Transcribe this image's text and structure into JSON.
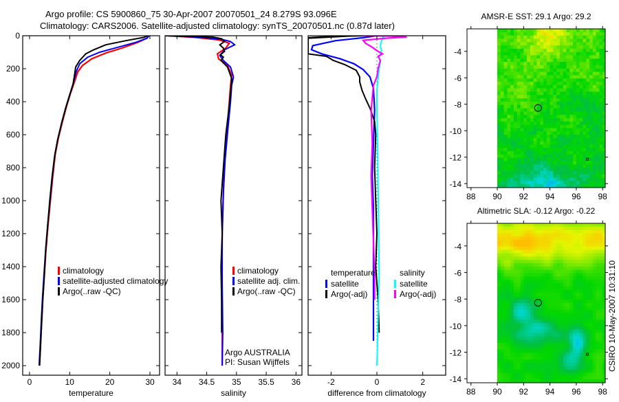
{
  "title": {
    "line1": "Argo profile: CS 5900860_75 30-Apr-2007 20070501_24 8.279S 93.096E",
    "line2": "Climatology: CARS2006. Satellite-adjusted climatology: synTS_20070501.nc (0.87d later)"
  },
  "side_label": "CSIRO 10-May-2007 10:31:10",
  "annotation": {
    "line1": "Argo AUSTRALIA",
    "line2": "PI: Susan Wijffels"
  },
  "colors": {
    "climatology": "#ff0000",
    "satellite": "#0000ff",
    "argo": "#000000",
    "sal_satellite": "#00ffff",
    "sal_argo": "#ff00ff"
  },
  "chart_data": [
    {
      "type": "line",
      "id": "temperature",
      "xlabel": "temperature",
      "xlim": [
        -1.7,
        32.4
      ],
      "ylim": [
        0,
        2058
      ],
      "y_reversed": true,
      "xticks": [
        "0",
        "10",
        "20",
        "30"
      ],
      "yticks": [
        "0",
        "200",
        "400",
        "600",
        "800",
        "1000",
        "1200",
        "1400",
        "1600",
        "1800",
        "2000"
      ],
      "legend": [
        "climatology",
        "satellite-adjusted climatology",
        "Argo(..raw -QC)"
      ],
      "series": [
        {
          "name": "climatology",
          "color": "#ff0000",
          "points": [
            [
              29.6,
              0
            ],
            [
              29.2,
              15
            ],
            [
              27,
              40
            ],
            [
              23,
              75
            ],
            [
              19,
              105
            ],
            [
              15.5,
              140
            ],
            [
              13.2,
              180
            ],
            [
              12,
              220
            ],
            [
              11.2,
              280
            ],
            [
              10.2,
              350
            ],
            [
              9.2,
              430
            ],
            [
              8.2,
              520
            ],
            [
              7.2,
              620
            ],
            [
              6.4,
              720
            ],
            [
              5.8,
              850
            ],
            [
              5.2,
              1000
            ],
            [
              4.6,
              1150
            ],
            [
              4.1,
              1300
            ],
            [
              3.7,
              1450
            ],
            [
              3.3,
              1600
            ],
            [
              3,
              1750
            ],
            [
              2.7,
              1900
            ],
            [
              2.5,
              2000
            ]
          ]
        },
        {
          "name": "satellite-adjusted climatology",
          "color": "#0000ff",
          "points": [
            [
              29.8,
              0
            ],
            [
              29.3,
              15
            ],
            [
              26.5,
              40
            ],
            [
              22,
              70
            ],
            [
              17.5,
              100
            ],
            [
              14.5,
              130
            ],
            [
              12.5,
              170
            ],
            [
              11.6,
              220
            ],
            [
              11,
              280
            ],
            [
              10.1,
              350
            ],
            [
              9.1,
              430
            ],
            [
              8.1,
              520
            ],
            [
              7.1,
              620
            ],
            [
              6.3,
              720
            ],
            [
              5.7,
              850
            ],
            [
              5.1,
              1000
            ],
            [
              4.5,
              1150
            ],
            [
              4,
              1300
            ],
            [
              3.6,
              1450
            ],
            [
              3.2,
              1600
            ],
            [
              2.9,
              1750
            ],
            [
              2.6,
              1900
            ],
            [
              2.4,
              2000
            ]
          ]
        },
        {
          "name": "Argo(..raw -QC)",
          "color": "#000000",
          "points": [
            [
              29.4,
              0
            ],
            [
              28.5,
              10
            ],
            [
              24,
              30
            ],
            [
              19,
              55
            ],
            [
              16,
              85
            ],
            [
              14,
              110
            ],
            [
              12.5,
              150
            ],
            [
              11.5,
              190
            ],
            [
              11.2,
              240
            ],
            [
              10.8,
              300
            ],
            [
              10,
              360
            ],
            [
              9,
              440
            ],
            [
              8,
              530
            ],
            [
              7,
              630
            ],
            [
              6.2,
              740
            ],
            [
              5.6,
              860
            ],
            [
              5,
              1010
            ],
            [
              4.5,
              1160
            ],
            [
              4,
              1310
            ],
            [
              3.7,
              1450
            ],
            [
              3.3,
              1600
            ],
            [
              3,
              1750
            ],
            [
              2.7,
              1900
            ],
            [
              2.5,
              2000
            ]
          ]
        }
      ]
    },
    {
      "type": "line",
      "id": "salinity",
      "xlabel": "salinity",
      "xlim": [
        33.8,
        36.1
      ],
      "ylim": [
        0,
        2058
      ],
      "y_reversed": true,
      "xticks": [
        "34",
        "34.5",
        "35",
        "35.5",
        "36"
      ],
      "legend": [
        "climatology",
        "satellite adj. clim.",
        "Argo(..raw -QC)"
      ],
      "series": [
        {
          "name": "climatology",
          "color": "#ff0000",
          "points": [
            [
              33.85,
              0
            ],
            [
              34.3,
              10
            ],
            [
              34.7,
              25
            ],
            [
              34.88,
              45
            ],
            [
              34.82,
              75
            ],
            [
              34.68,
              110
            ],
            [
              34.7,
              140
            ],
            [
              34.85,
              180
            ],
            [
              34.92,
              240
            ],
            [
              34.9,
              300
            ],
            [
              34.88,
              400
            ],
            [
              34.85,
              550
            ],
            [
              34.8,
              750
            ],
            [
              34.78,
              950
            ],
            [
              34.76,
              1200
            ],
            [
              34.75,
              1500
            ],
            [
              34.76,
              1800
            ],
            [
              34.76,
              2000
            ]
          ]
        },
        {
          "name": "satellite adj. clim.",
          "color": "#0000ff",
          "points": [
            [
              33.85,
              0
            ],
            [
              34.4,
              10
            ],
            [
              34.75,
              22
            ],
            [
              34.9,
              35
            ],
            [
              34.97,
              55
            ],
            [
              34.8,
              85
            ],
            [
              34.72,
              120
            ],
            [
              34.78,
              150
            ],
            [
              34.9,
              190
            ],
            [
              34.95,
              250
            ],
            [
              34.92,
              300
            ],
            [
              34.9,
              400
            ],
            [
              34.86,
              550
            ],
            [
              34.81,
              750
            ],
            [
              34.78,
              950
            ],
            [
              34.76,
              1200
            ],
            [
              34.76,
              1500
            ],
            [
              34.77,
              1800
            ],
            [
              34.76,
              2000
            ]
          ]
        },
        {
          "name": "Argo(..raw -QC)",
          "color": "#000000",
          "points": [
            [
              33.8,
              0
            ],
            [
              34.6,
              8
            ],
            [
              34.75,
              18
            ],
            [
              34.8,
              35
            ],
            [
              34.72,
              55
            ],
            [
              34.78,
              75
            ],
            [
              34.8,
              95
            ],
            [
              34.73,
              115
            ],
            [
              34.78,
              130
            ],
            [
              34.74,
              150
            ],
            [
              34.85,
              190
            ],
            [
              34.92,
              260
            ],
            [
              34.9,
              350
            ],
            [
              34.87,
              450
            ],
            [
              34.82,
              600
            ],
            [
              34.78,
              800
            ],
            [
              34.74,
              1000
            ],
            [
              34.76,
              1200
            ],
            [
              34.74,
              1400
            ],
            [
              34.75,
              1600
            ],
            [
              34.75,
              1800
            ]
          ]
        }
      ]
    },
    {
      "type": "line",
      "id": "difference",
      "xlabel": "difference from climatology",
      "xlim": [
        -3.0,
        3.0
      ],
      "ylim": [
        0,
        2058
      ],
      "y_reversed": true,
      "xticks": [
        "-2",
        "0",
        "2"
      ],
      "legend_groups": [
        {
          "header": "temperature",
          "items": [
            "satellite",
            "Argo(-adj)"
          ]
        },
        {
          "header": "salinity",
          "items": [
            "satellite",
            "Argo(-adj)"
          ]
        }
      ],
      "series": [
        {
          "name": "temperature satellite",
          "color": "#0000ff",
          "points": [
            [
              0,
              0
            ],
            [
              -0.6,
              12
            ],
            [
              -1.8,
              30
            ],
            [
              -2.8,
              60
            ],
            [
              -2.85,
              85
            ],
            [
              -2.4,
              110
            ],
            [
              -1.6,
              140
            ],
            [
              -1.0,
              170
            ],
            [
              -0.6,
              205
            ],
            [
              -0.3,
              250
            ],
            [
              -0.15,
              320
            ],
            [
              -0.1,
              450
            ],
            [
              -0.15,
              650
            ],
            [
              -0.2,
              850
            ],
            [
              -0.15,
              1050
            ],
            [
              -0.15,
              1300
            ],
            [
              -0.15,
              1500
            ],
            [
              -0.15,
              1700
            ],
            [
              -0.15,
              1850
            ]
          ]
        },
        {
          "name": "temperature Argo(-adj)",
          "color": "#000000",
          "points": [
            [
              -3,
              12
            ],
            [
              -2.5,
              8
            ],
            [
              -1.4,
              3
            ],
            [
              -0.5,
              0
            ],
            [
              -1.2,
              2
            ],
            [
              -3,
              15
            ],
            [
              -3,
              110
            ],
            [
              -2.2,
              125
            ],
            [
              -1.9,
              150
            ],
            [
              -1.4,
              175
            ],
            [
              -0.9,
              210
            ],
            [
              -0.75,
              250
            ],
            [
              -0.75,
              280
            ],
            [
              -0.65,
              330
            ],
            [
              -0.5,
              380
            ],
            [
              -0.3,
              440
            ],
            [
              -0.1,
              520
            ],
            [
              -0.05,
              600
            ],
            [
              -0.1,
              800
            ],
            [
              -0.05,
              1000
            ],
            [
              0,
              1200
            ],
            [
              -0.05,
              1400
            ],
            [
              0.05,
              1600
            ],
            [
              0.1,
              1800
            ]
          ]
        },
        {
          "name": "salinity satellite",
          "color": "#00ffff",
          "points": [
            [
              0.2,
              0
            ],
            [
              0.3,
              12
            ],
            [
              0.2,
              30
            ],
            [
              0.15,
              60
            ],
            [
              0.2,
              90
            ],
            [
              0.1,
              130
            ],
            [
              0.15,
              160
            ],
            [
              0.1,
              200
            ],
            [
              0.05,
              260
            ],
            [
              0,
              330
            ],
            [
              0,
              450
            ],
            [
              0.03,
              650
            ],
            [
              0.05,
              900
            ],
            [
              0.08,
              1200
            ],
            [
              0.1,
              1450
            ],
            [
              0.05,
              1700
            ],
            [
              0.02,
              1900
            ],
            [
              0,
              2000
            ]
          ]
        },
        {
          "name": "salinity Argo(-adj)",
          "color": "#ff00ff",
          "points": [
            [
              -0.6,
              0
            ],
            [
              0.6,
              2
            ],
            [
              1.3,
              8
            ],
            [
              0.4,
              15
            ],
            [
              -0.6,
              28
            ],
            [
              -0.5,
              45
            ],
            [
              -0.2,
              70
            ],
            [
              0.05,
              95
            ],
            [
              0.25,
              110
            ],
            [
              0.05,
              125
            ],
            [
              0.15,
              150
            ],
            [
              0.05,
              200
            ],
            [
              0,
              250
            ],
            [
              -0.15,
              300
            ],
            [
              -0.25,
              450
            ],
            [
              -0.2,
              650
            ],
            [
              -0.25,
              850
            ],
            [
              -0.2,
              1050
            ],
            [
              -0.15,
              1250
            ],
            [
              -0.1,
              1450
            ],
            [
              -0.1,
              1600
            ]
          ]
        }
      ]
    },
    {
      "type": "heatmap",
      "id": "sst-map",
      "title": "AMSR-E SST: 29.1 Argo: 29.2",
      "xlim": [
        87.7,
        98.2
      ],
      "ylim": [
        -14.3,
        -2.3
      ],
      "data_lon_range": [
        90,
        98.2
      ],
      "xticks": [
        "88",
        "90",
        "92",
        "94",
        "96",
        "98"
      ],
      "yticks": [
        "-4",
        "-6",
        "-8",
        "-10",
        "-12",
        "-14"
      ],
      "profile_marker": {
        "lon": 93.096,
        "lat": -8.279
      },
      "secondary_marker": {
        "lon": 96.85,
        "lat": -12.15
      }
    },
    {
      "type": "heatmap",
      "id": "sla-map",
      "title": "Altimetric SLA: -0.12 Argo: -0.22",
      "xlim": [
        87.7,
        98.2
      ],
      "ylim": [
        -14.3,
        -2.3
      ],
      "data_lon_range": [
        90,
        98.2
      ],
      "xticks": [
        "88",
        "90",
        "92",
        "94",
        "96",
        "98"
      ],
      "yticks": [
        "-4",
        "-6",
        "-8",
        "-10",
        "-12",
        "-14"
      ],
      "profile_marker": {
        "lon": 93.096,
        "lat": -8.279
      },
      "secondary_marker": {
        "lon": 96.85,
        "lat": -12.15
      }
    }
  ]
}
